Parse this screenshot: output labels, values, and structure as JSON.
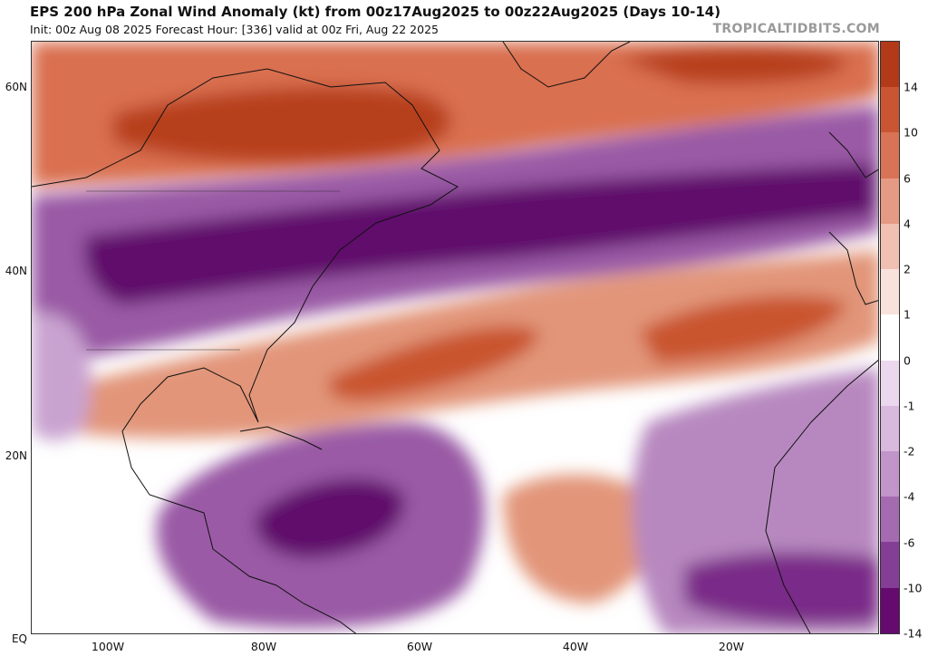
{
  "header": {
    "title": "EPS 200 hPa Zonal Wind Anomaly (kt) from 00z17Aug2025 to 00z22Aug2025 (Days 10-14)",
    "subtitle": "Init: 00z Aug 08 2025   Forecast Hour: [336]   valid at 00z Fri, Aug 22 2025",
    "brand": "TROPICALTIDBITS.COM"
  },
  "map": {
    "lat_labels": [
      "60N",
      "40N",
      "20N",
      "EQ"
    ],
    "lon_labels": [
      "100W",
      "80W",
      "60W",
      "40W",
      "20W"
    ],
    "colors": {
      "strong_positive": "#b7401b",
      "positive": "#d9704f",
      "weak_positive": "#eeb8a8",
      "neutral": "#ffffff",
      "weak_negative": "#d6b5d9",
      "negative": "#9a5aa5",
      "strong_negative": "#600a6c",
      "coastline": "#111111"
    }
  },
  "colorbar": {
    "labels": [
      "14",
      "10",
      "6",
      "4",
      "2",
      "1",
      "0",
      "-1",
      "-2",
      "-4",
      "-6",
      "-10",
      "-14"
    ],
    "colors": [
      "#b23a18",
      "#c95533",
      "#d87355",
      "#e59a83",
      "#f0c0b2",
      "#f8e2db",
      "#ffffff",
      "#ebd7ee",
      "#d9b9de",
      "#c194ca",
      "#a46bb1",
      "#853e95",
      "#650b70"
    ]
  }
}
